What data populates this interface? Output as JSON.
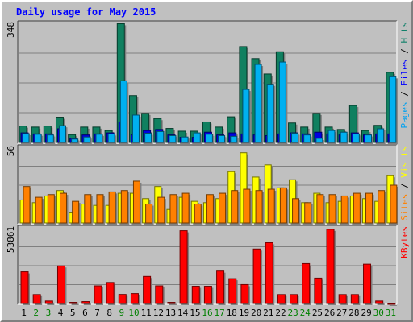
{
  "chart_data": {
    "type": "bar",
    "title": "Daily usage for May 2015",
    "categories": [
      "1",
      "2",
      "3",
      "4",
      "5",
      "6",
      "7",
      "8",
      "9",
      "10",
      "11",
      "12",
      "13",
      "14",
      "15",
      "16",
      "17",
      "18",
      "19",
      "20",
      "21",
      "22",
      "23",
      "24",
      "25",
      "26",
      "27",
      "28",
      "29",
      "30",
      "31"
    ],
    "weekend_days": [
      "2",
      "3",
      "9",
      "10",
      "16",
      "17",
      "23",
      "24",
      "30",
      "31"
    ],
    "panels": [
      {
        "id": "pages-files-hits",
        "max_label": "348",
        "ylim": [
          0,
          348
        ],
        "side_labels": [
          {
            "text": "Pages",
            "color": "#00a0f0"
          },
          {
            "text": " / ",
            "color": "#000000"
          },
          {
            "text": "Files",
            "color": "#0000ff"
          },
          {
            "text": " / ",
            "color": "#000000"
          },
          {
            "text": "Hits",
            "color": "#10806a"
          }
        ],
        "series": [
          {
            "name": "Hits",
            "color": "#108060",
            "values": [
              48,
              45,
              48,
              74,
              23,
              45,
              45,
              35,
              347,
              137,
              85,
              70,
              41,
              33,
              33,
              60,
              45,
              75,
              280,
              245,
              200,
              265,
              57,
              45,
              85,
              45,
              38,
              108,
              35,
              50,
              205
            ]
          },
          {
            "name": "Files",
            "color": "#0000e0",
            "values": [
              28,
              25,
              25,
              40,
              12,
              22,
              25,
              28,
              60,
              22,
              35,
              38,
              22,
              15,
              15,
              30,
              22,
              28,
              25,
              22,
              20,
              25,
              28,
              25,
              30,
              25,
              22,
              28,
              22,
              25,
              25
            ]
          },
          {
            "name": "Pages",
            "color": "#00b0f0",
            "values": [
              26,
              24,
              22,
              49,
              10,
              16,
              24,
              25,
              180,
              80,
              27,
              32,
              20,
              16,
              28,
              24,
              20,
              18,
              155,
              228,
              170,
              235,
              27,
              22,
              12,
              35,
              30,
              25,
              22,
              40,
              192
            ]
          }
        ]
      },
      {
        "id": "sites-visits",
        "max_label": "56",
        "ylim": [
          0,
          56
        ],
        "side_labels": [
          {
            "text": "Sites",
            "color": "#ff8000"
          },
          {
            "text": " / ",
            "color": "#000000"
          },
          {
            "text": "Visits",
            "color": "#ffff00"
          }
        ],
        "series": [
          {
            "name": "Visits",
            "color": "#ffff00",
            "values": [
              17,
              15,
              20,
              24,
              8,
              14,
              13,
              13,
              22,
              22,
              18,
              27,
              10,
              19,
              16,
              15,
              18,
              38,
              52,
              34,
              43,
              26,
              32,
              15,
              22,
              15,
              16,
              20,
              18,
              16,
              35
            ]
          },
          {
            "name": "Sites",
            "color": "#ff8000",
            "values": [
              27,
              19,
              21,
              22,
              16,
              21,
              21,
              23,
              24,
              31,
              14,
              19,
              21,
              22,
              14,
              21,
              22,
              24,
              25,
              24,
              25,
              26,
              18,
              15,
              21,
              21,
              20,
              22,
              22,
              24,
              28
            ]
          }
        ]
      },
      {
        "id": "kbytes",
        "max_label": "53861",
        "ylim": [
          0,
          53861
        ],
        "side_labels": [
          {
            "text": "KBytes",
            "color": "#ff0000"
          }
        ],
        "series": [
          {
            "name": "KBytes",
            "color": "#ff0000",
            "values": [
              22600,
              6400,
              1800,
              26800,
              850,
              1400,
              12600,
              15000,
              6500,
              7100,
              19300,
              12600,
              850,
              51800,
              12300,
              12300,
              23100,
              17700,
              13500,
              38800,
              43300,
              6400,
              6400,
              28400,
              18100,
              52800,
              6400,
              6400,
              28000,
              1800,
              0
            ]
          }
        ]
      }
    ]
  }
}
